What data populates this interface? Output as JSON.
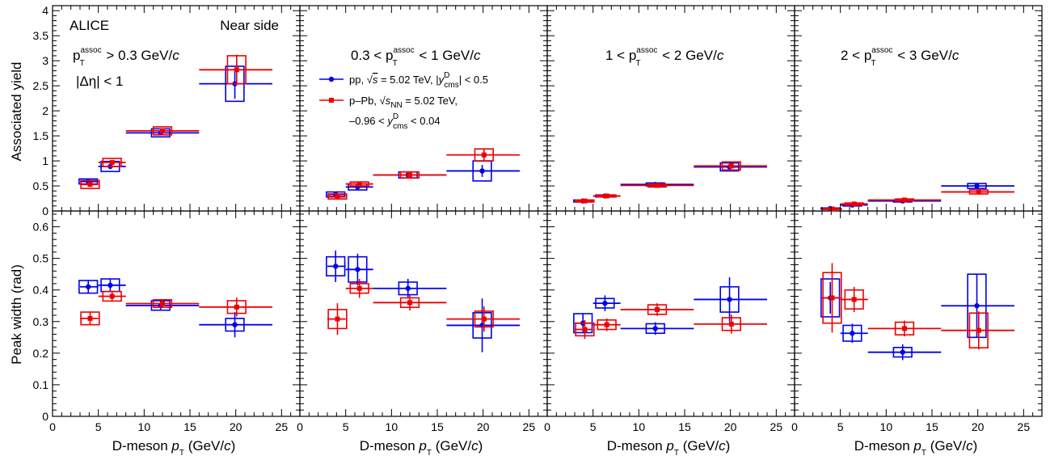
{
  "chart_data": {
    "type": "scatter",
    "experiment": "ALICE",
    "region": "Near side",
    "rapidity_cut": "|Δη| < 1",
    "xlabel": "D-meson p_T (GeV/c)",
    "xlim": [
      0,
      27
    ],
    "x_ticks": [
      "0",
      "5",
      "10",
      "15",
      "20",
      "25"
    ],
    "rows": [
      {
        "ylabel": "Associated yield",
        "ylim": [
          0,
          4.1
        ],
        "y_ticks": [
          "0",
          "0.5",
          "1",
          "1.5",
          "2",
          "2.5",
          "3",
          "3.5",
          "4"
        ]
      },
      {
        "ylabel": "Peak width (rad)",
        "ylim": [
          0,
          0.65
        ],
        "y_ticks": [
          "0",
          "0.1",
          "0.2",
          "0.3",
          "0.4",
          "0.5",
          "0.6"
        ]
      }
    ],
    "panel_titles": [
      "p_T^assoc > 0.3 GeV/c",
      "0.3 < p_T^assoc < 1 GeV/c",
      "1 < p_T^assoc < 2 GeV/c",
      "2 < p_T^assoc < 3 GeV/c"
    ],
    "legend": [
      {
        "label": "pp, √s = 5.02 TeV, |y_cms^D| < 0.5",
        "color": "#0000ee"
      },
      {
        "label": "p–Pb, √s_NN = 5.02 TeV, –0.96 < y_cms^D < 0.04",
        "color": "#ee0000"
      }
    ],
    "bins": {
      "x_low": [
        3,
        5,
        8,
        16
      ],
      "x_high": [
        5,
        8,
        16,
        24
      ]
    },
    "series": [
      {
        "panel": 0,
        "quantity": "yield",
        "system": "pp",
        "color": "#0000ee",
        "x": [
          3.9,
          6.3,
          11.8,
          19.9
        ],
        "y": [
          0.59,
          0.89,
          1.56,
          2.54
        ],
        "stat": [
          0.03,
          0.05,
          0.05,
          0.3
        ],
        "syst": [
          0.05,
          0.1,
          0.08,
          0.35
        ]
      },
      {
        "panel": 0,
        "quantity": "yield",
        "system": "pPb",
        "color": "#ee0000",
        "x": [
          4.1,
          6.5,
          12.0,
          20.1
        ],
        "y": [
          0.53,
          0.97,
          1.6,
          2.82
        ],
        "stat": [
          0.03,
          0.04,
          0.04,
          0.3
        ],
        "syst": [
          0.08,
          0.08,
          0.08,
          0.28
        ]
      },
      {
        "panel": 1,
        "quantity": "yield",
        "system": "pp",
        "color": "#0000ee",
        "x": [
          3.9,
          6.3,
          11.8,
          19.9
        ],
        "y": [
          0.33,
          0.48,
          0.72,
          0.8
        ],
        "stat": [
          0.03,
          0.03,
          0.04,
          0.12
        ],
        "syst": [
          0.05,
          0.06,
          0.06,
          0.2
        ]
      },
      {
        "panel": 1,
        "quantity": "yield",
        "system": "pPb",
        "color": "#ee0000",
        "x": [
          4.1,
          6.5,
          12.0,
          20.1
        ],
        "y": [
          0.29,
          0.54,
          0.72,
          1.12
        ],
        "stat": [
          0.02,
          0.03,
          0.03,
          0.12
        ],
        "syst": [
          0.05,
          0.04,
          0.06,
          0.12
        ]
      },
      {
        "panel": 2,
        "quantity": "yield",
        "system": "pp",
        "color": "#0000ee",
        "x": [
          3.9,
          6.3,
          11.8,
          19.9
        ],
        "y": [
          0.2,
          0.3,
          0.53,
          0.88
        ],
        "stat": [
          0.01,
          0.02,
          0.02,
          0.05
        ],
        "syst": [
          0.02,
          0.02,
          0.03,
          0.08
        ]
      },
      {
        "panel": 2,
        "quantity": "yield",
        "system": "pPb",
        "color": "#ee0000",
        "x": [
          4.1,
          6.5,
          12.0,
          20.1
        ],
        "y": [
          0.2,
          0.3,
          0.51,
          0.9
        ],
        "stat": [
          0.01,
          0.02,
          0.02,
          0.05
        ],
        "syst": [
          0.02,
          0.02,
          0.03,
          0.08
        ]
      },
      {
        "panel": 3,
        "quantity": "yield",
        "system": "pp",
        "color": "#0000ee",
        "x": [
          3.9,
          6.3,
          11.8,
          19.9
        ],
        "y": [
          0.05,
          0.12,
          0.2,
          0.5
        ],
        "stat": [
          0.01,
          0.01,
          0.02,
          0.05
        ],
        "syst": [
          0.01,
          0.02,
          0.02,
          0.05
        ]
      },
      {
        "panel": 3,
        "quantity": "yield",
        "system": "pPb",
        "color": "#ee0000",
        "x": [
          4.1,
          6.5,
          12.0,
          20.1
        ],
        "y": [
          0.04,
          0.14,
          0.22,
          0.38
        ],
        "stat": [
          0.01,
          0.01,
          0.02,
          0.03
        ],
        "syst": [
          0.01,
          0.02,
          0.02,
          0.04
        ]
      },
      {
        "panel": 0,
        "quantity": "width",
        "system": "pp",
        "color": "#0000ee",
        "x": [
          3.9,
          6.3,
          11.8,
          19.9
        ],
        "y": [
          0.41,
          0.415,
          0.351,
          0.29
        ],
        "stat": [
          0.02,
          0.02,
          0.015,
          0.04
        ],
        "syst": [
          0.02,
          0.02,
          0.015,
          0.02
        ]
      },
      {
        "panel": 0,
        "quantity": "width",
        "system": "pPb",
        "color": "#ee0000",
        "x": [
          4.1,
          6.5,
          12.0,
          20.1
        ],
        "y": [
          0.31,
          0.38,
          0.357,
          0.346
        ],
        "stat": [
          0.02,
          0.015,
          0.01,
          0.03
        ],
        "syst": [
          0.02,
          0.015,
          0.012,
          0.02
        ]
      },
      {
        "panel": 1,
        "quantity": "width",
        "system": "pp",
        "color": "#0000ee",
        "x": [
          3.9,
          6.3,
          11.8,
          19.9
        ],
        "y": [
          0.475,
          0.465,
          0.405,
          0.288
        ],
        "stat": [
          0.05,
          0.05,
          0.03,
          0.085
        ],
        "syst": [
          0.03,
          0.04,
          0.02,
          0.04
        ]
      },
      {
        "panel": 1,
        "quantity": "width",
        "system": "pPb",
        "color": "#ee0000",
        "x": [
          4.1,
          6.5,
          12.0,
          20.1
        ],
        "y": [
          0.308,
          0.405,
          0.36,
          0.308
        ],
        "stat": [
          0.05,
          0.03,
          0.025,
          0.04
        ],
        "syst": [
          0.03,
          0.015,
          0.015,
          0.025
        ]
      },
      {
        "panel": 2,
        "quantity": "width",
        "system": "pp",
        "color": "#0000ee",
        "x": [
          3.9,
          6.3,
          11.8,
          19.9
        ],
        "y": [
          0.295,
          0.358,
          0.278,
          0.37
        ],
        "stat": [
          0.03,
          0.025,
          0.02,
          0.07
        ],
        "syst": [
          0.03,
          0.015,
          0.015,
          0.04
        ]
      },
      {
        "panel": 2,
        "quantity": "width",
        "system": "pPb",
        "color": "#ee0000",
        "x": [
          4.1,
          6.5,
          12.0,
          20.1
        ],
        "y": [
          0.275,
          0.29,
          0.338,
          0.292
        ],
        "stat": [
          0.03,
          0.02,
          0.02,
          0.03
        ],
        "syst": [
          0.02,
          0.015,
          0.015,
          0.02
        ]
      },
      {
        "panel": 3,
        "quantity": "width",
        "system": "pp",
        "color": "#0000ee",
        "x": [
          3.9,
          6.3,
          11.8,
          19.9
        ],
        "y": [
          0.375,
          0.263,
          0.203,
          0.35
        ],
        "stat": [
          0.05,
          0.03,
          0.025,
          0.1
        ],
        "syst": [
          0.06,
          0.025,
          0.015,
          0.1
        ]
      },
      {
        "panel": 3,
        "quantity": "width",
        "system": "pPb",
        "color": "#ee0000",
        "x": [
          4.1,
          6.5,
          12.0,
          20.1
        ],
        "y": [
          0.375,
          0.37,
          0.278,
          0.272
        ],
        "stat": [
          0.11,
          0.04,
          0.025,
          0.06
        ],
        "syst": [
          0.08,
          0.03,
          0.02,
          0.055
        ]
      }
    ]
  }
}
